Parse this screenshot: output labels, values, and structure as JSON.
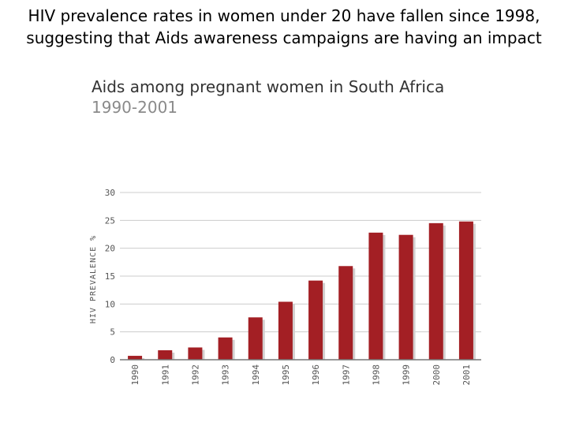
{
  "slide": {
    "title_line1": "HIV prevalence rates in women under 20 have fallen since 1998,",
    "title_line2": "suggesting that Aids awareness campaigns are having an impact"
  },
  "chart_data": {
    "type": "bar",
    "title": "Aids among pregnant women in South Africa",
    "subtitle": "1990-2001",
    "xlabel": "",
    "ylabel": "HIV PREVALENCE %",
    "categories": [
      "1990",
      "1991",
      "1992",
      "1993",
      "1994",
      "1995",
      "1996",
      "1997",
      "1998",
      "1999",
      "2000",
      "2001"
    ],
    "values": [
      0.7,
      1.7,
      2.2,
      4.0,
      7.6,
      10.4,
      14.2,
      16.8,
      22.8,
      22.4,
      24.5,
      24.8
    ],
    "ylim": [
      0,
      30
    ],
    "yticks": [
      0,
      5,
      10,
      15,
      20,
      25,
      30
    ],
    "grid": true,
    "colors": {
      "bar": "#a31f24",
      "shadow": "#d2cfcf",
      "grid": "#cccccc",
      "axis": "#777777"
    }
  }
}
